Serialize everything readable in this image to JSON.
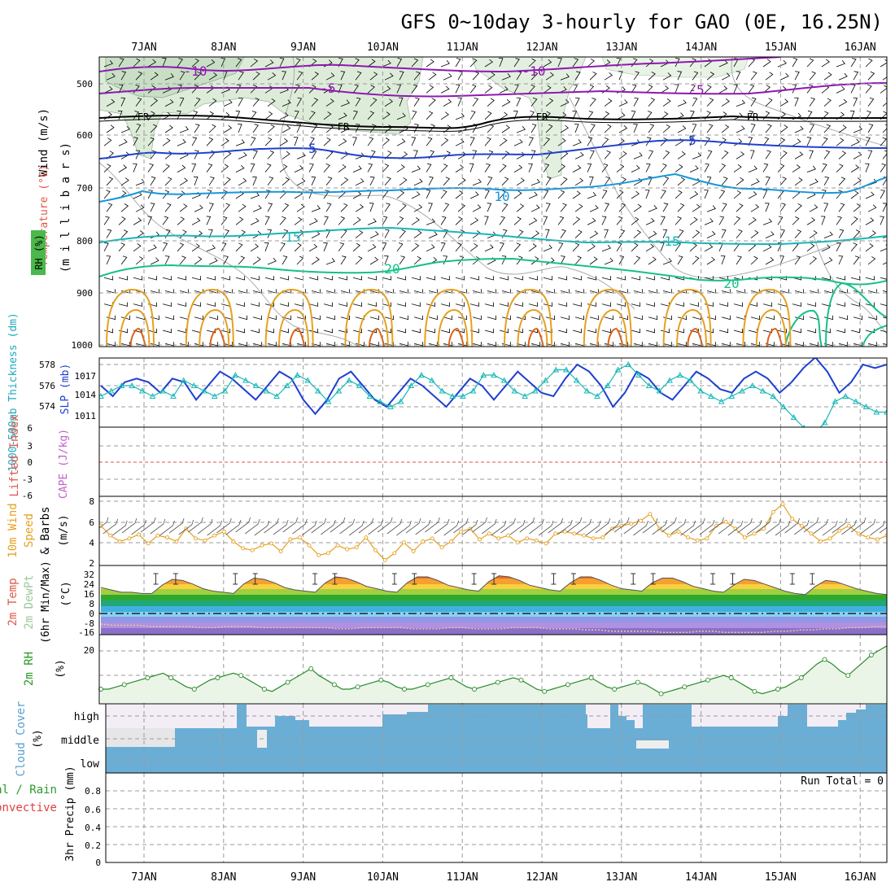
{
  "title": "GFS 0~10day 3-hourly for GAO (0E, 16.25N)",
  "dates": [
    "7JAN",
    "8JAN",
    "9JAN",
    "10JAN",
    "11JAN",
    "12JAN",
    "13JAN",
    "14JAN",
    "15JAN",
    "16JAN"
  ],
  "colors": {
    "purple": "#8f17b3",
    "blue": "#1f3fd0",
    "lightblue": "#1796dc",
    "cyan": "#17b7b7",
    "teal": "#15c08a",
    "orange": "#e6a020",
    "darkorange": "#e06010",
    "dew": "#9cc99c",
    "cloud": "#6aaed6",
    "rhfill": "#eaf5e8"
  },
  "panels": {
    "upper": {
      "ylabel_wind": "Wind (m/s)",
      "ylabel_temp": "Temperature (°C)",
      "ylabel_rh": "RH (%)",
      "ylabel_mb": "(m i l l i b a r s)",
      "yticks": [
        "500",
        "600",
        "700",
        "800",
        "900",
        "1000"
      ],
      "temp_labels": [
        "-10",
        "-10",
        "-5",
        "-5",
        "FR",
        "FR",
        "FR",
        "FR",
        "5",
        "5",
        "10",
        "15",
        "15",
        "20",
        "20"
      ]
    },
    "slp": {
      "ylabel_thick": "1000-500mb Thickness (dm)",
      "ylabel_slp": "SLP (mb)",
      "thick_ticks": [
        "578",
        "576",
        "574"
      ],
      "slp_ticks": [
        "1017",
        "1014",
        "1011"
      ]
    },
    "cape": {
      "ylabel_li": "Lifted Index",
      "ylabel_cape": "CAPE (J/kg)",
      "yticks": [
        "6",
        "3",
        "0",
        "-3",
        "-6"
      ]
    },
    "wind10": {
      "ylabel1": "10m Wind",
      "ylabel2": "Speed",
      "ylabel3": "& Barbs",
      "ylabel_unit": "(m/s)",
      "yticks": [
        "8",
        "6",
        "4",
        "2"
      ]
    },
    "temp2m": {
      "ylabel1": "2m Temp",
      "ylabel2": "2m DewPt",
      "ylabel3": "(6hr Min/Max)",
      "ylabel_unit": "(°C)",
      "yticks": [
        "32",
        "24",
        "16",
        "8",
        "0",
        "-8",
        "-16"
      ]
    },
    "rh2m": {
      "ylabel": "2m RH",
      "ylabel_unit": "(%)",
      "yticks": [
        "20"
      ]
    },
    "cloud": {
      "ylabel": "Cloud Cover",
      "ylabel_unit": "(%)",
      "levels": [
        "high",
        "middle",
        "low"
      ]
    },
    "precip": {
      "ylabel1": "tal / Rain",
      "ylabel2": "Convective",
      "ylabel_unit": "3hr Precip (mm)",
      "yticks": [
        "0.8",
        "0.6",
        "0.4",
        "0.2",
        "0"
      ],
      "run_total": "Run Total = 0"
    }
  },
  "chart_data": {
    "type": "line",
    "x_unit": "3-hourly steps from 6 JAN 12Z",
    "slp_mb": [
      1014,
      1012.5,
      1014.5,
      1015,
      1014.5,
      1013,
      1015,
      1014.5,
      1012,
      1014,
      1016,
      1015,
      1013.5,
      1012,
      1014,
      1016,
      1015,
      1012,
      1010,
      1012,
      1015,
      1016,
      1014,
      1012,
      1011,
      1013,
      1015,
      1014,
      1012.5,
      1011,
      1013,
      1015,
      1014,
      1012,
      1014,
      1016,
      1014.5,
      1013,
      1012.5,
      1015,
      1017,
      1016,
      1014,
      1011,
      1013,
      1016,
      1015,
      1013,
      1012,
      1014,
      1016,
      1015,
      1013.5,
      1013,
      1015,
      1016,
      1015,
      1013,
      1014.5,
      1016.5,
      1018,
      1016,
      1013,
      1014.5,
      1017,
      1016.5,
      1017
    ],
    "thickness_dm": [
      575,
      575.5,
      576,
      576,
      575.5,
      575,
      575.5,
      575,
      576.5,
      576,
      575.5,
      575,
      575.5,
      577,
      576.5,
      576,
      575.5,
      575,
      576,
      577,
      576.5,
      575.5,
      574.5,
      575.5,
      576.5,
      576,
      575,
      574.5,
      574,
      574.5,
      576,
      577,
      576.5,
      575.5,
      575,
      575,
      575.5,
      577,
      577,
      576.5,
      575.5,
      575,
      575.5,
      576.5,
      577.5,
      577.5,
      576.5,
      575.5,
      575,
      576,
      577.5,
      578,
      577,
      576,
      575.5,
      576.5,
      577,
      576.5,
      575.5,
      575,
      574.5,
      575,
      575.5,
      576,
      575.5,
      575,
      574,
      573,
      572,
      571.5,
      572.5,
      574.5,
      575,
      574.5,
      574,
      573.5,
      573.5
    ],
    "wind10_ms": [
      5.8,
      4.8,
      4.2,
      4.5,
      4.9,
      4.0,
      4.8,
      4.6,
      4.2,
      5.5,
      4.5,
      4.3,
      4.8,
      5.2,
      4.2,
      3.5,
      3.3,
      3.8,
      4.0,
      3.2,
      4.4,
      4.6,
      3.8,
      2.8,
      3.0,
      3.8,
      3.4,
      3.6,
      4.6,
      3.3,
      2.3,
      3.0,
      4.1,
      3.2,
      4.2,
      4.5,
      3.6,
      4.2,
      5.2,
      5.5,
      4.4,
      5.0,
      4.5,
      4.8,
      4.1,
      4.5,
      4.3,
      4.0,
      5.0,
      5.2,
      5.0,
      4.8,
      4.5,
      4.6,
      5.5,
      5.8,
      6.0,
      6.3,
      7.0,
      5.5,
      4.8,
      5.2,
      4.6,
      4.3,
      4.5,
      5.8,
      6.2,
      5.5,
      4.6,
      5.0,
      5.5,
      7.2,
      8.0,
      6.5,
      5.8,
      5.0,
      4.2,
      4.5,
      5.3,
      5.8,
      5.0,
      4.6,
      4.4,
      4.8
    ],
    "temp2m_c": [
      22,
      20,
      18,
      18,
      17,
      17,
      24,
      29,
      28,
      25,
      21,
      19,
      18,
      17,
      25,
      30,
      29,
      26,
      22,
      20,
      19,
      18,
      26,
      31,
      30,
      27,
      23,
      21,
      19,
      18,
      26,
      31,
      31,
      28,
      24,
      22,
      20,
      19,
      27,
      32,
      31,
      28,
      24,
      22,
      20,
      19,
      26,
      31,
      31,
      28,
      24,
      21,
      20,
      19,
      26,
      30,
      30,
      27,
      23,
      21,
      19,
      18,
      24,
      29,
      28,
      25,
      22,
      19,
      17,
      16,
      23,
      28,
      27,
      24,
      21,
      19,
      17,
      16
    ],
    "dew2m_c": [
      -9,
      -10,
      -10,
      -10,
      -11,
      -11,
      -11,
      -11,
      -12,
      -12,
      -11,
      -11,
      -11,
      -12,
      -12,
      -12,
      -12,
      -12,
      -12,
      -13,
      -13,
      -12,
      -12,
      -12,
      -12,
      -13,
      -13,
      -13,
      -12,
      -12,
      -13,
      -13,
      -13,
      -12,
      -12,
      -12,
      -13,
      -13,
      -13,
      -14,
      -14,
      -15,
      -15,
      -15,
      -15,
      -16,
      -16,
      -16,
      -15,
      -15,
      -16,
      -16,
      -16,
      -16,
      -15,
      -15,
      -14,
      -14,
      -13,
      -13,
      -12,
      -12,
      -11,
      -11
    ],
    "rh2m_pct": [
      5,
      5,
      6,
      7,
      8,
      9,
      10,
      11,
      12,
      10,
      8,
      6,
      5,
      7,
      9,
      10,
      11,
      12,
      11,
      9,
      7,
      5,
      4,
      6,
      8,
      10,
      12,
      14,
      11,
      9,
      7,
      5,
      5,
      6,
      7,
      8,
      9,
      8,
      6,
      5,
      5,
      6,
      7,
      8,
      9,
      10,
      8,
      6,
      5,
      6,
      7,
      8,
      9,
      10,
      9,
      7,
      5,
      4,
      5,
      6,
      7,
      8,
      9,
      10,
      8,
      6,
      5,
      6,
      7,
      8,
      7,
      5,
      3,
      4,
      5,
      6,
      7,
      8,
      9,
      10,
      11,
      10,
      8,
      6,
      4,
      3,
      4,
      5,
      6,
      8,
      10,
      13,
      16,
      18,
      16,
      13,
      11,
      14,
      17,
      20,
      22,
      24
    ]
  }
}
